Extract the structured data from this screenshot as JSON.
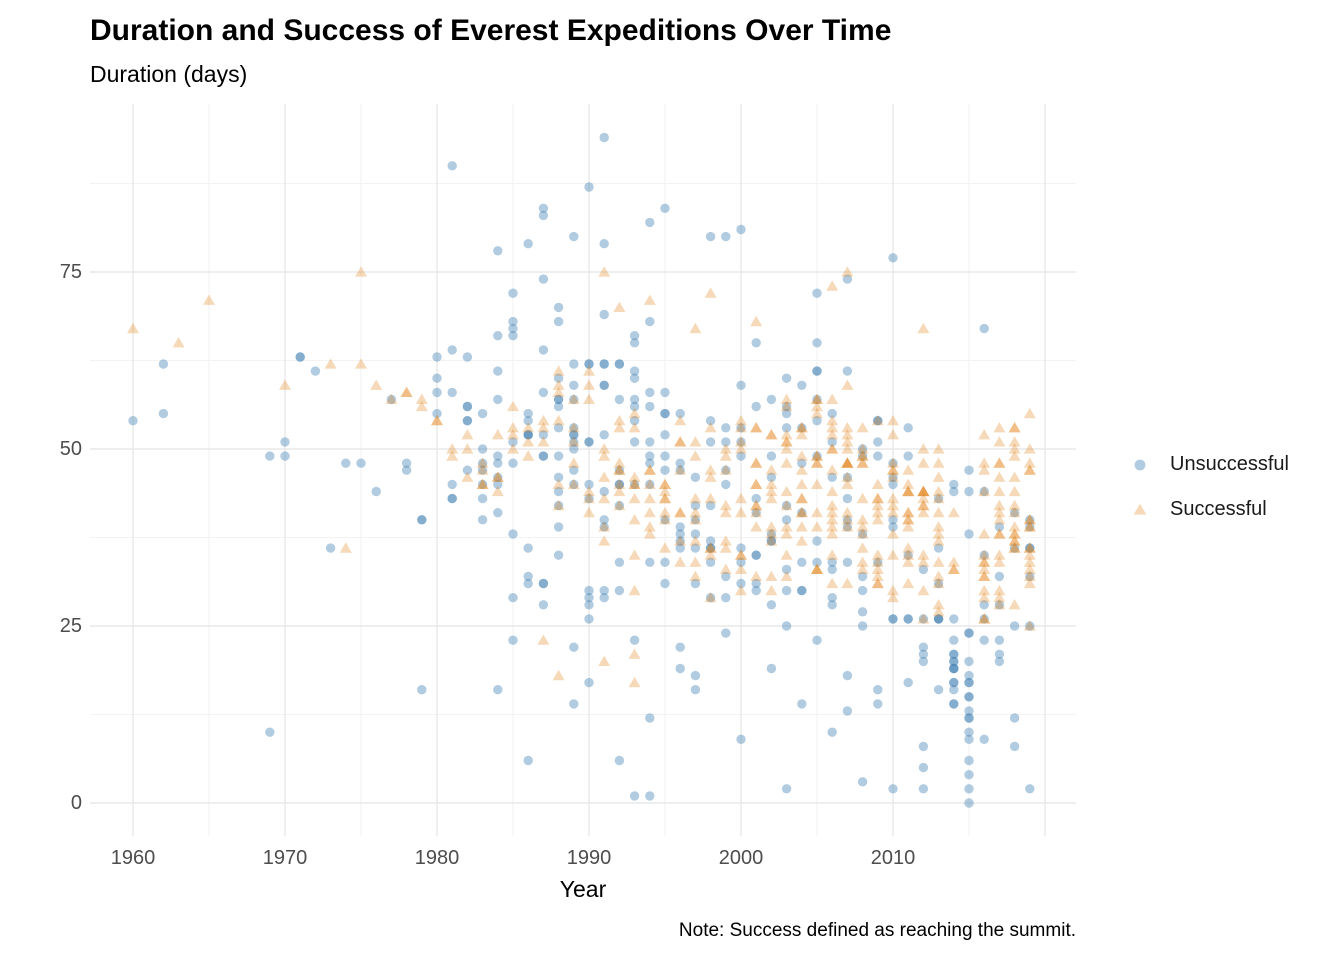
{
  "chart_data": {
    "type": "scatter",
    "title": "Duration and Success of Everest Expeditions Over Time",
    "ylabel": "Duration (days)",
    "xlabel": "Year",
    "caption": "Note: Success defined as reaching the summit.",
    "x_ticks": [
      1960,
      1970,
      1980,
      1990,
      2000,
      2010
    ],
    "y_ticks": [
      0,
      25,
      50,
      75
    ],
    "x_grid_major": [
      1960,
      1970,
      1980,
      1990,
      2000,
      2010,
      2020
    ],
    "x_grid_minor": [
      1965,
      1975,
      1985,
      1995,
      2005,
      2015
    ],
    "y_grid_major": [
      0,
      25,
      50,
      75
    ],
    "y_grid_minor": [
      12.5,
      37.5,
      62.5,
      87.5
    ],
    "xlim": [
      1957,
      2022
    ],
    "ylim": [
      -5,
      99
    ],
    "grid": true,
    "legend_position": "right",
    "colors": {
      "unsuccessful": "#4682B4",
      "successful": "#E08214",
      "grid_major": "#E4E4E4",
      "grid_minor": "#EFEFEF",
      "axis_text": "#4d4d4d"
    },
    "series": [
      {
        "name": "Unsuccessful",
        "marker": "circle",
        "color": "#4682B4",
        "opacity": 0.42
      },
      {
        "name": "Successful",
        "marker": "triangle",
        "color": "#E08214",
        "opacity": 0.3
      }
    ],
    "yearly_counts_format": "[year, unsuccessful_n, unsuccessful_min_days, unsuccessful_max_days, successful_n, successful_min_days, successful_max_days]",
    "yearly_counts": [
      [
        1960,
        1,
        54,
        56,
        1,
        67,
        67
      ],
      [
        1962,
        2,
        55,
        62,
        0,
        0,
        0
      ],
      [
        1963,
        0,
        0,
        0,
        1,
        65,
        65
      ],
      [
        1965,
        0,
        0,
        0,
        1,
        71,
        71
      ],
      [
        1970,
        2,
        44,
        58,
        1,
        59,
        59
      ],
      [
        1971,
        2,
        62,
        65,
        0,
        0,
        0
      ],
      [
        1972,
        1,
        61,
        61,
        0,
        0,
        0
      ],
      [
        1973,
        1,
        36,
        36,
        1,
        62,
        62
      ],
      [
        1974,
        1,
        48,
        48,
        1,
        36,
        36
      ],
      [
        1975,
        1,
        48,
        48,
        1,
        62,
        62
      ],
      [
        1976,
        1,
        44,
        44,
        1,
        59,
        59
      ],
      [
        1977,
        1,
        57,
        57,
        1,
        57,
        57
      ],
      [
        1978,
        2,
        36,
        52,
        2,
        55,
        59
      ],
      [
        1979,
        2,
        29,
        60,
        2,
        55,
        57
      ],
      [
        1980,
        4,
        50,
        66,
        2,
        53,
        57
      ],
      [
        1981,
        5,
        38,
        70,
        2,
        48,
        50
      ],
      [
        1982,
        6,
        40,
        73,
        3,
        46,
        60
      ],
      [
        1983,
        7,
        26,
        67,
        4,
        44,
        54
      ],
      [
        1984,
        8,
        29,
        72,
        4,
        40,
        55
      ],
      [
        1985,
        9,
        18,
        73,
        4,
        47,
        60
      ],
      [
        1986,
        8,
        28,
        70,
        3,
        45,
        57
      ],
      [
        1987,
        9,
        22,
        76,
        3,
        48,
        55
      ],
      [
        1988,
        13,
        25,
        78,
        6,
        40,
        65
      ],
      [
        1989,
        10,
        30,
        72,
        5,
        42,
        62
      ],
      [
        1990,
        10,
        25,
        72,
        6,
        35,
        62
      ],
      [
        1991,
        11,
        20,
        72,
        6,
        35,
        60
      ],
      [
        1992,
        9,
        25,
        68,
        8,
        35,
        58
      ],
      [
        1993,
        10,
        15,
        68,
        9,
        30,
        57
      ],
      [
        1994,
        8,
        15,
        70,
        7,
        30,
        55
      ],
      [
        1995,
        9,
        20,
        72,
        8,
        30,
        55
      ],
      [
        1996,
        9,
        15,
        68,
        8,
        30,
        55
      ],
      [
        1997,
        8,
        12,
        68,
        8,
        30,
        55
      ],
      [
        1998,
        8,
        15,
        70,
        8,
        28,
        55
      ],
      [
        1999,
        7,
        10,
        70,
        8,
        30,
        55
      ],
      [
        2000,
        8,
        8,
        68,
        10,
        30,
        56
      ],
      [
        2001,
        8,
        15,
        66,
        11,
        30,
        58
      ],
      [
        2002,
        8,
        10,
        64,
        11,
        28,
        58
      ],
      [
        2003,
        9,
        5,
        70,
        13,
        30,
        60
      ],
      [
        2004,
        8,
        12,
        64,
        12,
        30,
        58
      ],
      [
        2005,
        9,
        15,
        68,
        14,
        30,
        62
      ],
      [
        2006,
        8,
        10,
        64,
        15,
        28,
        58
      ],
      [
        2007,
        8,
        12,
        68,
        15,
        28,
        60
      ],
      [
        2008,
        7,
        5,
        60,
        13,
        25,
        55
      ],
      [
        2009,
        7,
        10,
        62,
        13,
        26,
        55
      ],
      [
        2010,
        7,
        5,
        62,
        13,
        25,
        55
      ],
      [
        2011,
        6,
        8,
        58,
        14,
        25,
        52
      ],
      [
        2012,
        7,
        5,
        56,
        14,
        25,
        52
      ],
      [
        2013,
        7,
        5,
        54,
        14,
        25,
        52
      ],
      [
        2014,
        14,
        8,
        30,
        4,
        30,
        42
      ],
      [
        2015,
        16,
        0,
        30,
        0,
        0,
        0
      ],
      [
        2016,
        6,
        2,
        46,
        15,
        26,
        57
      ],
      [
        2017,
        6,
        5,
        50,
        16,
        25,
        58
      ],
      [
        2018,
        5,
        3,
        46,
        17,
        25,
        58
      ],
      [
        2019,
        6,
        2,
        46,
        17,
        25,
        57
      ]
    ],
    "outlier_points_format": "[year, duration_days]",
    "outliers_unsuccessful": [
      [
        1969,
        10
      ],
      [
        1969,
        49
      ],
      [
        1979,
        16
      ],
      [
        1981,
        90
      ],
      [
        1984,
        16
      ],
      [
        1984,
        78
      ],
      [
        1986,
        79
      ],
      [
        1986,
        6
      ],
      [
        1987,
        83
      ],
      [
        1987,
        84
      ],
      [
        1989,
        80
      ],
      [
        1989,
        22
      ],
      [
        1989,
        14
      ],
      [
        1990,
        87
      ],
      [
        1990,
        17
      ],
      [
        1991,
        94
      ],
      [
        1991,
        79
      ],
      [
        1992,
        6
      ],
      [
        1993,
        1
      ],
      [
        1994,
        82
      ],
      [
        1994,
        12
      ],
      [
        1994,
        1
      ],
      [
        1995,
        84
      ],
      [
        1998,
        80
      ],
      [
        1999,
        80
      ],
      [
        2000,
        81
      ],
      [
        2003,
        2
      ],
      [
        2005,
        72
      ],
      [
        2007,
        74
      ],
      [
        2008,
        3
      ],
      [
        2010,
        77
      ],
      [
        2010,
        2
      ],
      [
        2012,
        2
      ],
      [
        2014,
        45
      ],
      [
        2014,
        44
      ],
      [
        2015,
        47
      ],
      [
        2015,
        44
      ],
      [
        2015,
        38
      ],
      [
        2015,
        0
      ],
      [
        2016,
        67
      ],
      [
        2019,
        2
      ]
    ],
    "outliers_successful": [
      [
        1975,
        75
      ],
      [
        1987,
        23
      ],
      [
        1988,
        18
      ],
      [
        1991,
        75
      ],
      [
        1991,
        20
      ],
      [
        1992,
        70
      ],
      [
        1993,
        21
      ],
      [
        1993,
        17
      ],
      [
        1994,
        71
      ],
      [
        1997,
        67
      ],
      [
        1998,
        72
      ],
      [
        2001,
        68
      ],
      [
        2006,
        73
      ],
      [
        2007,
        75
      ],
      [
        2012,
        67
      ]
    ]
  }
}
